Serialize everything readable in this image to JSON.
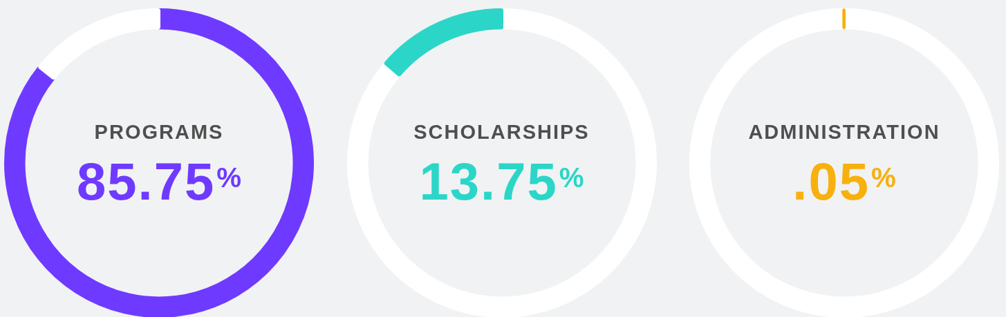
{
  "chart_data": [
    {
      "type": "donut",
      "categories": [
        "PROGRAMS",
        null
      ],
      "values": [
        85.75,
        14.25
      ],
      "colors": [
        "#6f3aff",
        "#ffffff"
      ],
      "value_labels": [
        "85.75$^{%}$",
        null
      ]
    },
    {
      "type": "donut",
      "categories": [
        null,
        "SCHOLARSHIPS"
      ],
      "values": [
        86.25,
        13.75
      ],
      "colors": [
        "#ffffff",
        "#2bd6c8"
      ],
      "value_labels": [
        null,
        "13.75$^{%}$"
      ]
    },
    {
      "type": "donut",
      "categories": [
        null,
        "ADMINISTRATION"
      ],
      "values": [
        99.95,
        0.05
      ],
      "colors": [
        "#ffffff",
        "#f8b00f"
      ],
      "value_labels": [
        null,
        ".05$^{%}$"
      ]
    }
  ]
}
